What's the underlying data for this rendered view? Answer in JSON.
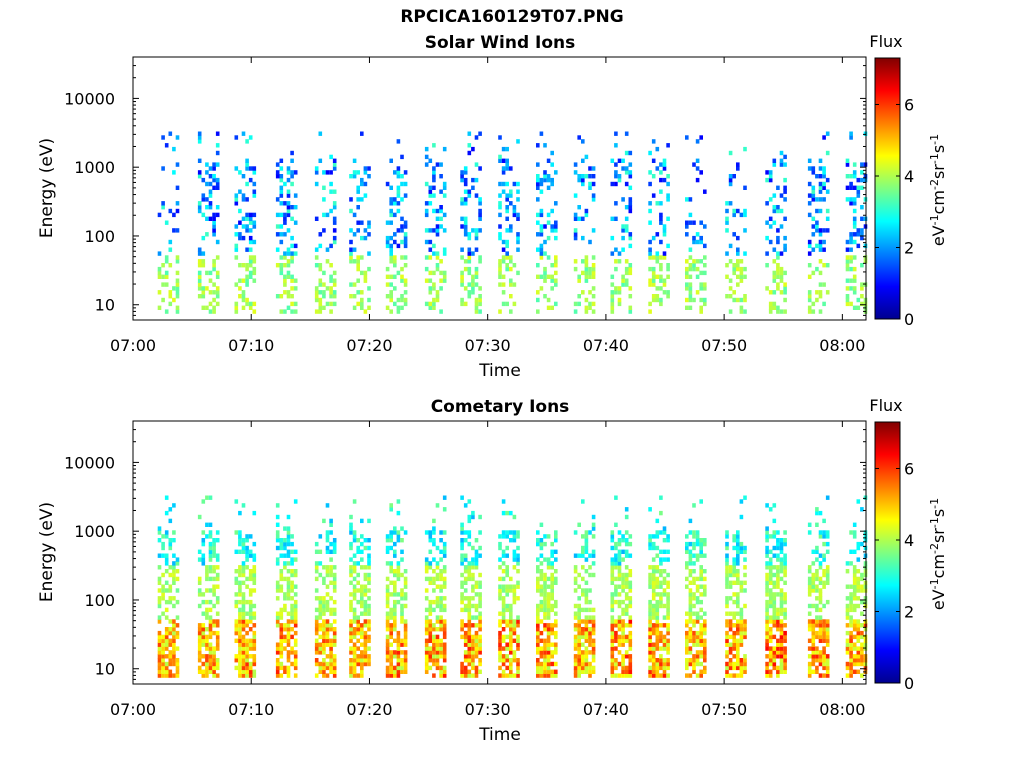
{
  "figure_title": "RPCICA160129T07.PNG",
  "chart_data": [
    {
      "type": "heatmap",
      "title": "Solar Wind Ions",
      "xlabel": "Time",
      "ylabel": "Energy (eV)",
      "x_ticks": [
        "07:00",
        "07:10",
        "07:20",
        "07:30",
        "07:40",
        "07:50",
        "08:00"
      ],
      "x_range_minutes": [
        0,
        62
      ],
      "y_scale": "log",
      "y_ticks": [
        "10",
        "100",
        "1000",
        "10000"
      ],
      "y_range": [
        6,
        40000
      ],
      "colorbar": {
        "title": "Flux",
        "label": "eV-1cm-2sr-1s-1",
        "ticks": [
          "0",
          "2",
          "4",
          "6"
        ],
        "range": [
          0,
          7.3
        ]
      },
      "scan_columns": [
        {
          "t": 3.0,
          "f": 0.5
        },
        {
          "t": 6.4,
          "f": 0.8
        },
        {
          "t": 9.5,
          "f": 0.9
        },
        {
          "t": 13.0,
          "f": 1.0
        },
        {
          "t": 16.3,
          "f": 0.6
        },
        {
          "t": 19.2,
          "f": 0.7
        },
        {
          "t": 22.3,
          "f": 0.8
        },
        {
          "t": 25.6,
          "f": 0.8
        },
        {
          "t": 28.6,
          "f": 0.8
        },
        {
          "t": 31.8,
          "f": 0.8
        },
        {
          "t": 35.0,
          "f": 0.7
        },
        {
          "t": 38.2,
          "f": 0.5
        },
        {
          "t": 41.3,
          "f": 0.7
        },
        {
          "t": 44.5,
          "f": 0.7
        },
        {
          "t": 47.6,
          "f": 0.5
        },
        {
          "t": 51.0,
          "f": 0.5
        },
        {
          "t": 54.4,
          "f": 0.9
        },
        {
          "t": 58.0,
          "f": 1.0
        },
        {
          "t": 61.2,
          "f": 0.9
        }
      ]
    },
    {
      "type": "heatmap",
      "title": "Cometary Ions",
      "xlabel": "Time",
      "ylabel": "Energy (eV)",
      "x_ticks": [
        "07:00",
        "07:10",
        "07:20",
        "07:30",
        "07:40",
        "07:50",
        "08:00"
      ],
      "x_range_minutes": [
        0,
        62
      ],
      "y_scale": "log",
      "y_ticks": [
        "10",
        "100",
        "1000",
        "10000"
      ],
      "y_range": [
        6,
        40000
      ],
      "colorbar": {
        "title": "Flux",
        "label": "eV-1cm-2sr-1s-1",
        "ticks": [
          "0",
          "2",
          "4",
          "6"
        ],
        "range": [
          0,
          7.3
        ]
      },
      "scan_columns": [
        {
          "t": 3.0,
          "f": 0.9
        },
        {
          "t": 6.4,
          "f": 0.9
        },
        {
          "t": 9.5,
          "f": 1.0
        },
        {
          "t": 13.0,
          "f": 1.0
        },
        {
          "t": 16.3,
          "f": 0.9
        },
        {
          "t": 19.2,
          "f": 0.9
        },
        {
          "t": 22.3,
          "f": 1.0
        },
        {
          "t": 25.6,
          "f": 1.0
        },
        {
          "t": 28.6,
          "f": 1.0
        },
        {
          "t": 31.8,
          "f": 1.0
        },
        {
          "t": 35.0,
          "f": 1.0
        },
        {
          "t": 38.2,
          "f": 0.9
        },
        {
          "t": 41.3,
          "f": 1.1
        },
        {
          "t": 44.5,
          "f": 1.0
        },
        {
          "t": 47.6,
          "f": 0.9
        },
        {
          "t": 51.0,
          "f": 1.0
        },
        {
          "t": 54.4,
          "f": 1.1
        },
        {
          "t": 58.0,
          "f": 1.0
        },
        {
          "t": 61.2,
          "f": 0.9
        }
      ]
    }
  ]
}
